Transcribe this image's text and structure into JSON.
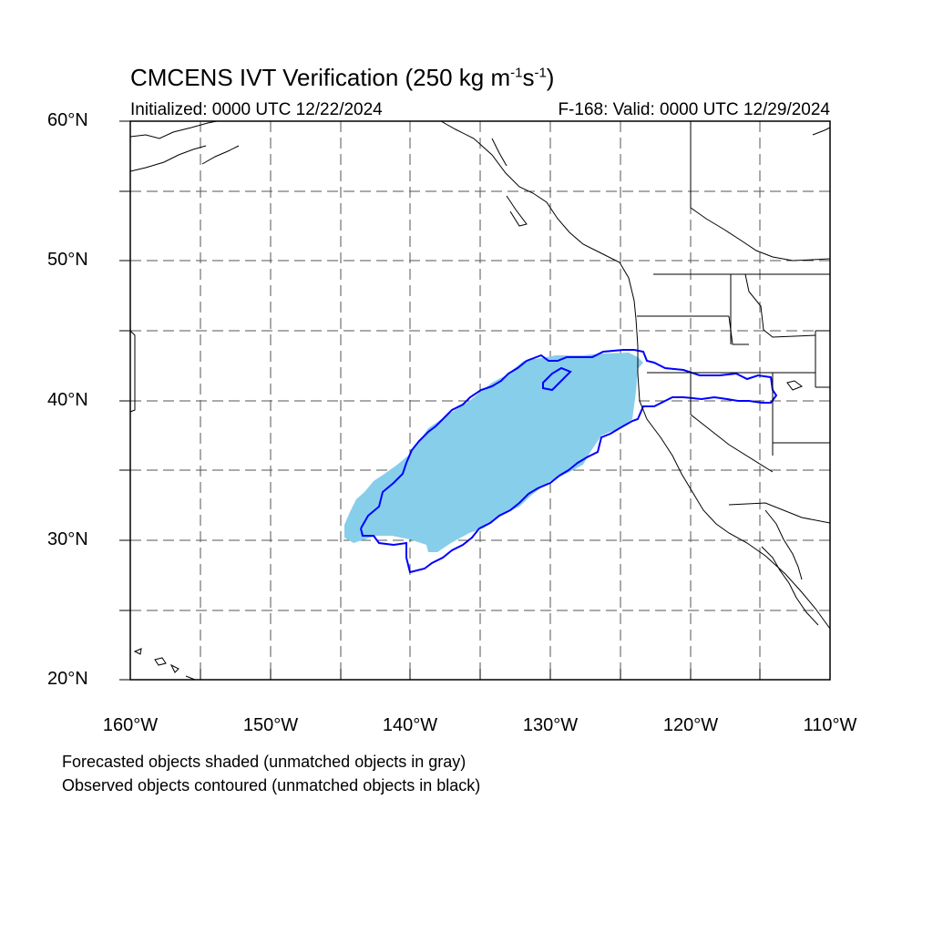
{
  "title": {
    "main": "CMCENS IVT Verification (250 kg m",
    "sup1": "-1",
    "mid": "s",
    "sup2": "-1",
    "end": ")"
  },
  "initialized": "Initialized: 0000 UTC 12/22/2024",
  "valid": "F-168: Valid: 0000 UTC 12/29/2024",
  "lat_labels": [
    "60°N",
    "50°N",
    "40°N",
    "30°N",
    "20°N"
  ],
  "lon_labels": [
    "160°W",
    "150°W",
    "140°W",
    "130°W",
    "120°W",
    "110°W"
  ],
  "notes": {
    "forecast": "Forecasted objects shaded (unmatched objects in gray)",
    "observed": "Observed objects contoured (unmatched objects in black)"
  },
  "colors": {
    "forecast_fill": "#87ceeb",
    "observed_contour": "#0000ff",
    "coastline": "#000000",
    "gridline": "#555555"
  },
  "map": {
    "projection": "cylindrical equidistant",
    "lon_range": [
      -160,
      -110
    ],
    "lat_range": [
      20,
      60
    ],
    "grid_interval_deg": 5,
    "grid_style": "dashed"
  }
}
